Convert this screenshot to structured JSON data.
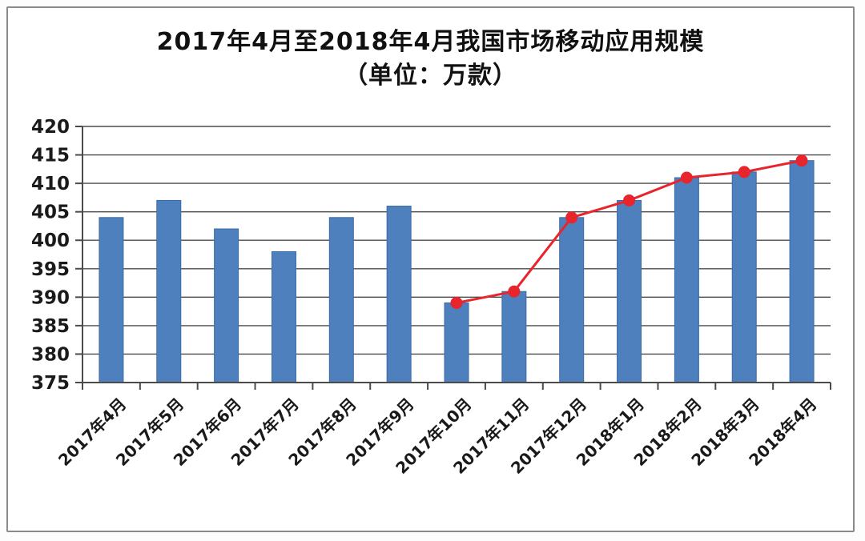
{
  "title": {
    "line1": "2017年4月至2018年4月我国市场移动应用规模",
    "line2": "（单位：万款）"
  },
  "colors": {
    "bar_fill": "#4d80bc",
    "bar_border": "#3b6ba7",
    "line_red": "#e8242c",
    "gridline": "#4b4b4b",
    "axis": "#4b4b4b",
    "text": "#1a1a1a",
    "frame_border": "#8a8a8a",
    "background": "#ffffff"
  },
  "chart_data": {
    "type": "bar",
    "title": "2017年4月至2018年4月我国市场移动应用规模（单位：万款）",
    "xlabel": "",
    "ylabel": "",
    "ylim": [
      375,
      420
    ],
    "yticks": [
      375,
      380,
      385,
      390,
      395,
      400,
      405,
      410,
      415,
      420
    ],
    "grid": true,
    "legend_position": "none",
    "categories": [
      "2017年4月",
      "2017年5月",
      "2017年6月",
      "2017年7月",
      "2017年8月",
      "2017年9月",
      "2017年10月",
      "2017年11月",
      "2017年12月",
      "2018年1月",
      "2018年2月",
      "2018年3月",
      "2018年4月"
    ],
    "series": [
      {
        "type": "bar",
        "color": "#4d80bc",
        "values": [
          404,
          407,
          402,
          398,
          404,
          406,
          389,
          391,
          404,
          407,
          411,
          412,
          414
        ]
      },
      {
        "type": "line",
        "color": "#e8242c",
        "marker": "circle",
        "values": [
          null,
          null,
          null,
          null,
          null,
          null,
          389,
          391,
          404,
          407,
          411,
          412,
          414
        ]
      }
    ]
  }
}
